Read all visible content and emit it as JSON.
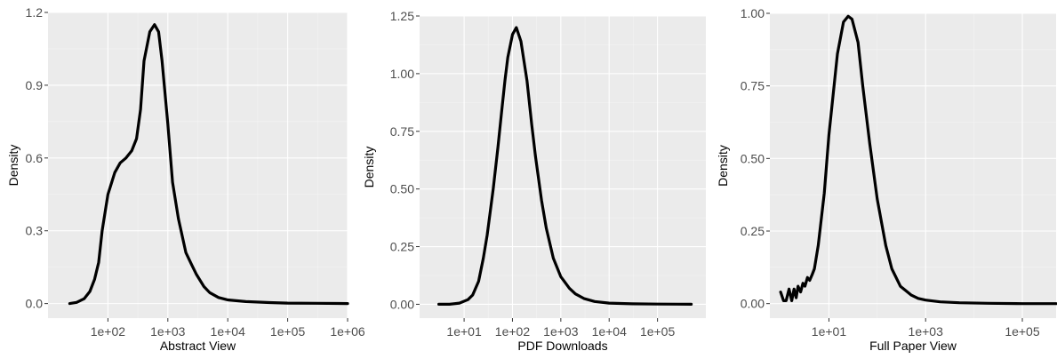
{
  "chart_data": [
    {
      "type": "line",
      "xlabel": "Abstract View",
      "ylabel": "Density",
      "x_scale": "log10",
      "xlim": [
        10,
        1000000
      ],
      "ylim": [
        -0.06,
        1.2
      ],
      "yticks": [
        0.0,
        0.3,
        0.6,
        0.9,
        1.2
      ],
      "ytick_labels": [
        "0.0",
        "0.3",
        "0.6",
        "0.9",
        "1.2"
      ],
      "xticks": [
        100,
        1000,
        10000,
        100000,
        1000000
      ],
      "xtick_labels": [
        "1e+02",
        "1e+03",
        "1e+04",
        "1e+05",
        "1e+06"
      ],
      "grid": true,
      "series": [
        {
          "x": [
            23,
            30,
            40,
            50,
            60,
            70,
            80,
            100,
            130,
            160,
            200,
            250,
            300,
            350,
            400,
            500,
            600,
            700,
            800,
            1000,
            1200,
            1500,
            2000,
            2500,
            3000,
            4000,
            5000,
            7000,
            10000,
            20000,
            50000,
            100000,
            300000,
            1000000
          ],
          "y": [
            0.0,
            0.005,
            0.02,
            0.05,
            0.1,
            0.17,
            0.3,
            0.45,
            0.54,
            0.58,
            0.6,
            0.63,
            0.68,
            0.8,
            1.0,
            1.12,
            1.15,
            1.12,
            1.0,
            0.74,
            0.5,
            0.35,
            0.21,
            0.16,
            0.12,
            0.07,
            0.045,
            0.025,
            0.015,
            0.008,
            0.004,
            0.002,
            0.001,
            0.0
          ]
        }
      ]
    },
    {
      "type": "line",
      "xlabel": "PDF Downloads",
      "ylabel": "Density",
      "x_scale": "log10",
      "xlim": [
        1.2,
        1000000
      ],
      "ylim": [
        -0.06,
        1.25
      ],
      "yticks": [
        0.0,
        0.25,
        0.5,
        0.75,
        1.0,
        1.25
      ],
      "ytick_labels": [
        "0.00",
        "0.25",
        "0.50",
        "0.75",
        "1.00",
        "1.25"
      ],
      "xticks": [
        10,
        100,
        1000,
        10000,
        100000
      ],
      "xtick_labels": [
        "1e+01",
        "1e+02",
        "1e+03",
        "1e+04",
        "1e+05"
      ],
      "grid": true,
      "series": [
        {
          "x": [
            3,
            5,
            8,
            12,
            15,
            20,
            25,
            30,
            40,
            50,
            60,
            70,
            80,
            100,
            120,
            150,
            200,
            250,
            300,
            400,
            500,
            700,
            1000,
            1500,
            2000,
            3000,
            5000,
            10000,
            30000,
            100000,
            500000
          ],
          "y": [
            0.0,
            0.0,
            0.005,
            0.02,
            0.04,
            0.1,
            0.2,
            0.3,
            0.5,
            0.68,
            0.84,
            0.97,
            1.07,
            1.17,
            1.2,
            1.14,
            0.97,
            0.78,
            0.64,
            0.45,
            0.33,
            0.2,
            0.12,
            0.07,
            0.045,
            0.025,
            0.012,
            0.005,
            0.002,
            0.001,
            0.0
          ]
        }
      ]
    },
    {
      "type": "line",
      "xlabel": "Full Paper View",
      "ylabel": "Density",
      "x_scale": "log10",
      "xlim": [
        0.6,
        500000
      ],
      "ylim": [
        -0.05,
        1.0
      ],
      "yticks": [
        0.0,
        0.25,
        0.5,
        0.75,
        1.0
      ],
      "ytick_labels": [
        "0.00",
        "0.25",
        "0.50",
        "0.75",
        "1.00"
      ],
      "xticks": [
        10,
        1000,
        100000
      ],
      "xtick_labels": [
        "1e+01",
        "1e+03",
        "1e+05"
      ],
      "grid": true,
      "series": [
        {
          "x": [
            1,
            1.15,
            1.3,
            1.5,
            1.7,
            1.9,
            2.1,
            2.3,
            2.6,
            2.9,
            3.2,
            3.6,
            4,
            4.5,
            5,
            6,
            8,
            10,
            15,
            20,
            25,
            30,
            40,
            50,
            70,
            100,
            150,
            200,
            300,
            500,
            700,
            1000,
            2000,
            5000,
            20000,
            100000,
            500000
          ],
          "y": [
            0.04,
            0.01,
            0.01,
            0.05,
            0.01,
            0.05,
            0.02,
            0.06,
            0.04,
            0.07,
            0.06,
            0.09,
            0.08,
            0.1,
            0.12,
            0.2,
            0.38,
            0.58,
            0.86,
            0.97,
            0.99,
            0.98,
            0.9,
            0.75,
            0.55,
            0.36,
            0.2,
            0.12,
            0.06,
            0.03,
            0.018,
            0.012,
            0.006,
            0.003,
            0.001,
            0.0,
            0.0
          ]
        }
      ]
    }
  ]
}
